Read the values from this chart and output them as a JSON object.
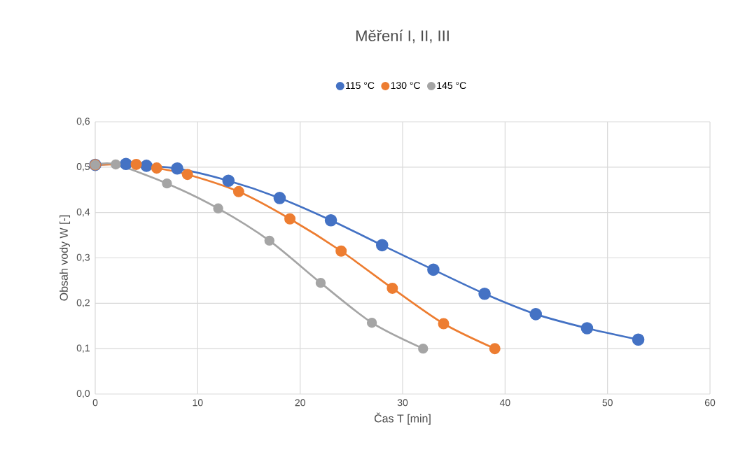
{
  "chart_data": {
    "type": "line",
    "title": "Měření I, II, III",
    "xlabel": "Čas T [min]",
    "ylabel": "Obsah vody W [-]",
    "xlim": [
      0,
      60
    ],
    "xticks": [
      0,
      10,
      20,
      30,
      40,
      50,
      60
    ],
    "ylim": [
      0,
      0.6
    ],
    "yticks": [
      {
        "value": 0,
        "label": "0,0"
      },
      {
        "value": 0.1,
        "label": "0,1"
      },
      {
        "value": 0.2,
        "label": "0,2"
      },
      {
        "value": 0.3,
        "label": "0,3"
      },
      {
        "value": 0.4,
        "label": "0,4"
      },
      {
        "value": 0.5,
        "label": "0,5"
      },
      {
        "value": 0.6,
        "label": "0,6"
      }
    ],
    "grid": true,
    "legend": "top",
    "marker": "circle",
    "line_style": "solid",
    "series": [
      {
        "name": "115 °C",
        "color": "#4472c4",
        "x": [
          0,
          3,
          5,
          8,
          13,
          18,
          23,
          28,
          33,
          38,
          43,
          48,
          53
        ],
        "values": [
          0.505,
          0.507,
          0.503,
          0.497,
          0.47,
          0.432,
          0.383,
          0.328,
          0.274,
          0.221,
          0.176,
          0.145,
          0.12
        ]
      },
      {
        "name": "130 °C",
        "color": "#ed7d31",
        "x": [
          0,
          4,
          6,
          9,
          14,
          19,
          24,
          29,
          34,
          39
        ],
        "values": [
          0.505,
          0.506,
          0.498,
          0.484,
          0.446,
          0.386,
          0.315,
          0.233,
          0.155,
          0.1
        ]
      },
      {
        "name": "145 °C",
        "color": "#a5a5a5",
        "x": [
          0,
          2,
          7,
          12,
          17,
          22,
          27,
          32
        ],
        "values": [
          0.505,
          0.506,
          0.464,
          0.409,
          0.338,
          0.245,
          0.157,
          0.1
        ]
      }
    ]
  }
}
